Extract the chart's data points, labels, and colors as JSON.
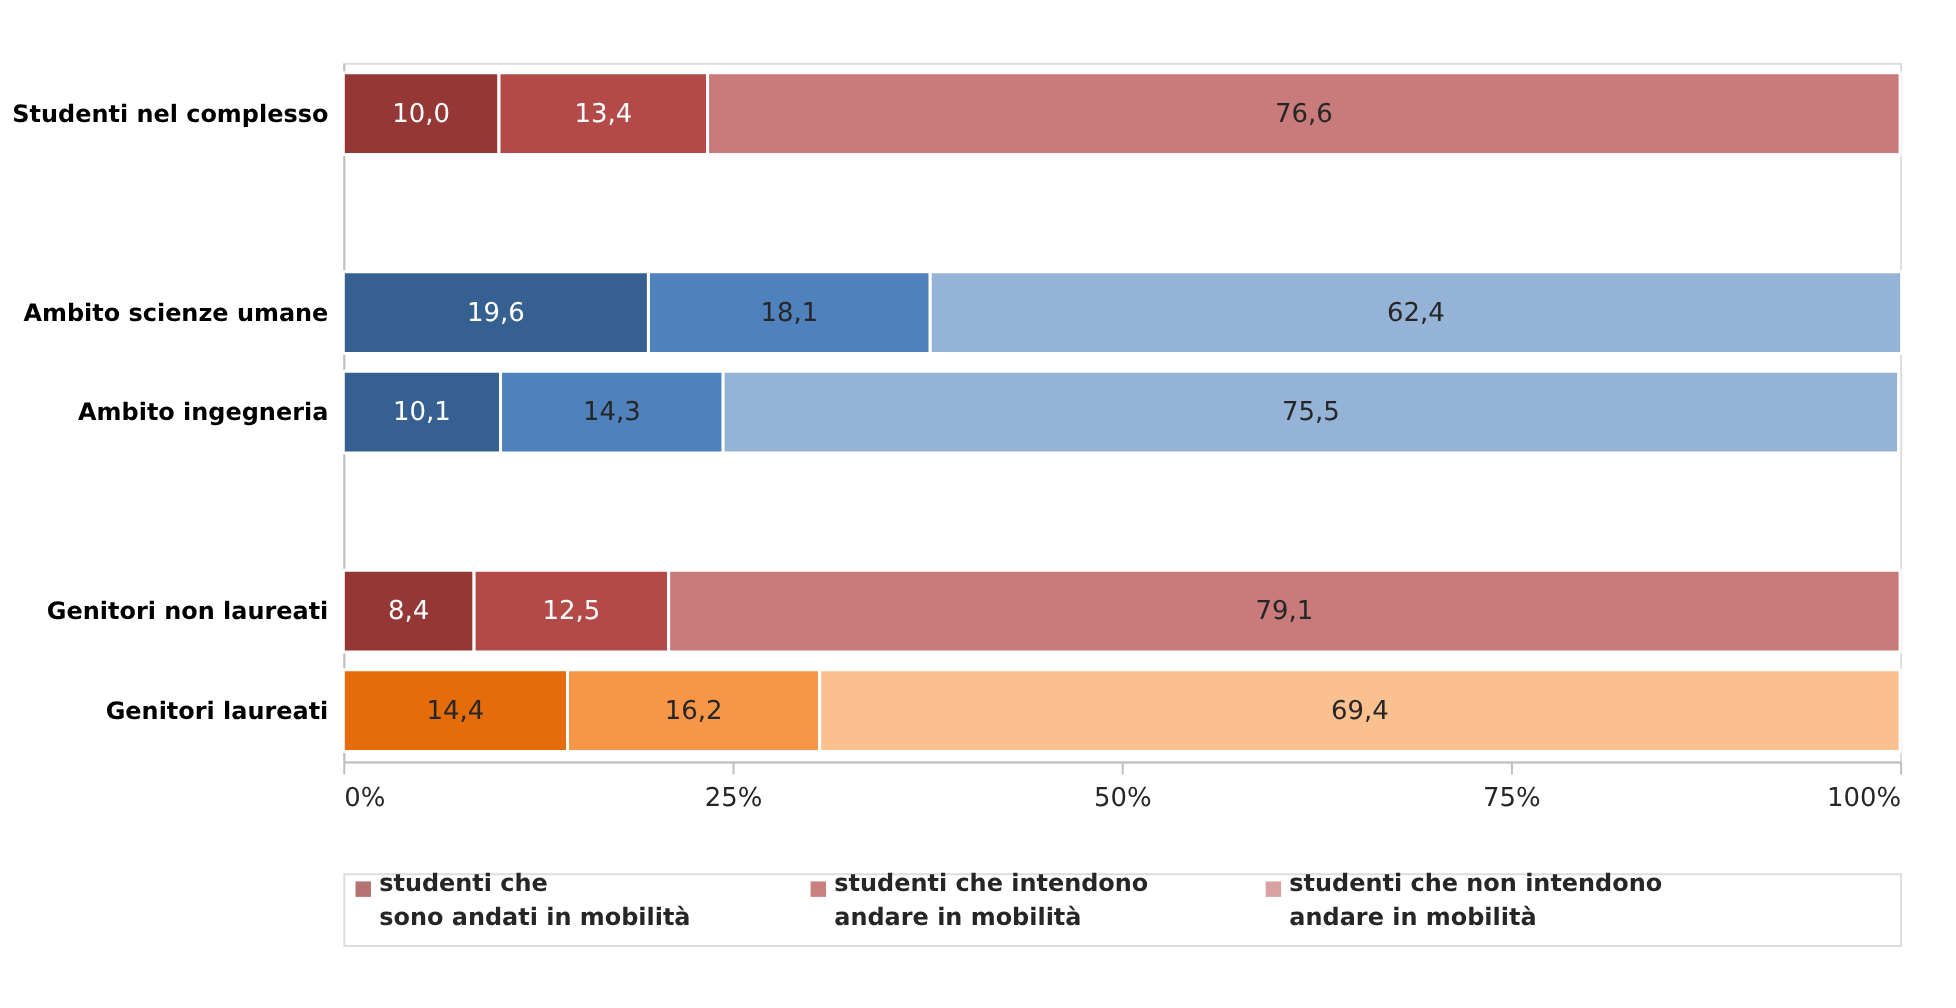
{
  "chart_data": {
    "type": "bar",
    "orientation": "horizontal",
    "stacked": true,
    "categories": [
      "Studenti nel complesso",
      null,
      "Ambito scienze umane",
      "Ambito ingegneria",
      null,
      "Genitori non laureati",
      "Genitori laureati"
    ],
    "series": [
      {
        "name": "studenti che\nsono andati in mobilità",
        "color": "#953735",
        "colors": [
          "#953735",
          null,
          "#376092",
          "#376092",
          null,
          "#953735",
          "#e46c0a"
        ],
        "values": [
          10.0,
          null,
          19.6,
          10.1,
          null,
          8.4,
          14.4
        ],
        "value_labels": [
          "10,0",
          null,
          "19,6",
          "10,1",
          null,
          "8,4",
          "14,4"
        ]
      },
      {
        "name": "studenti che intendono\nandare in mobilità",
        "color": "#b44a48",
        "colors": [
          "#b44a48",
          null,
          "#4f81bd",
          "#4f81bd",
          null,
          "#b44a48",
          "#f79646"
        ],
        "values": [
          13.4,
          null,
          18.1,
          14.3,
          null,
          12.5,
          16.2
        ],
        "value_labels": [
          "13,4",
          null,
          "18,1",
          "14,3",
          null,
          "12,5",
          "16,2"
        ]
      },
      {
        "name": "studenti che non intendono\nandare in mobilità",
        "color": "#c97b7b",
        "colors": [
          "#c97b7b",
          null,
          "#95b3d7",
          "#95b3d7",
          null,
          "#c97b7b",
          "#fac090"
        ],
        "values": [
          76.6,
          null,
          62.4,
          75.5,
          null,
          79.1,
          69.4
        ],
        "value_labels": [
          "76,6",
          null,
          "62,4",
          "75,5",
          null,
          "79,1",
          "69,4"
        ]
      }
    ],
    "xlim": [
      0,
      100
    ],
    "xticks": [
      {
        "value": 0,
        "label": "0%"
      },
      {
        "value": 25,
        "label": "25%"
      },
      {
        "value": 50,
        "label": "50%"
      },
      {
        "value": 75,
        "label": "75%"
      },
      {
        "value": 100,
        "label": "100%"
      }
    ],
    "grid": false,
    "legend": "bottom"
  }
}
